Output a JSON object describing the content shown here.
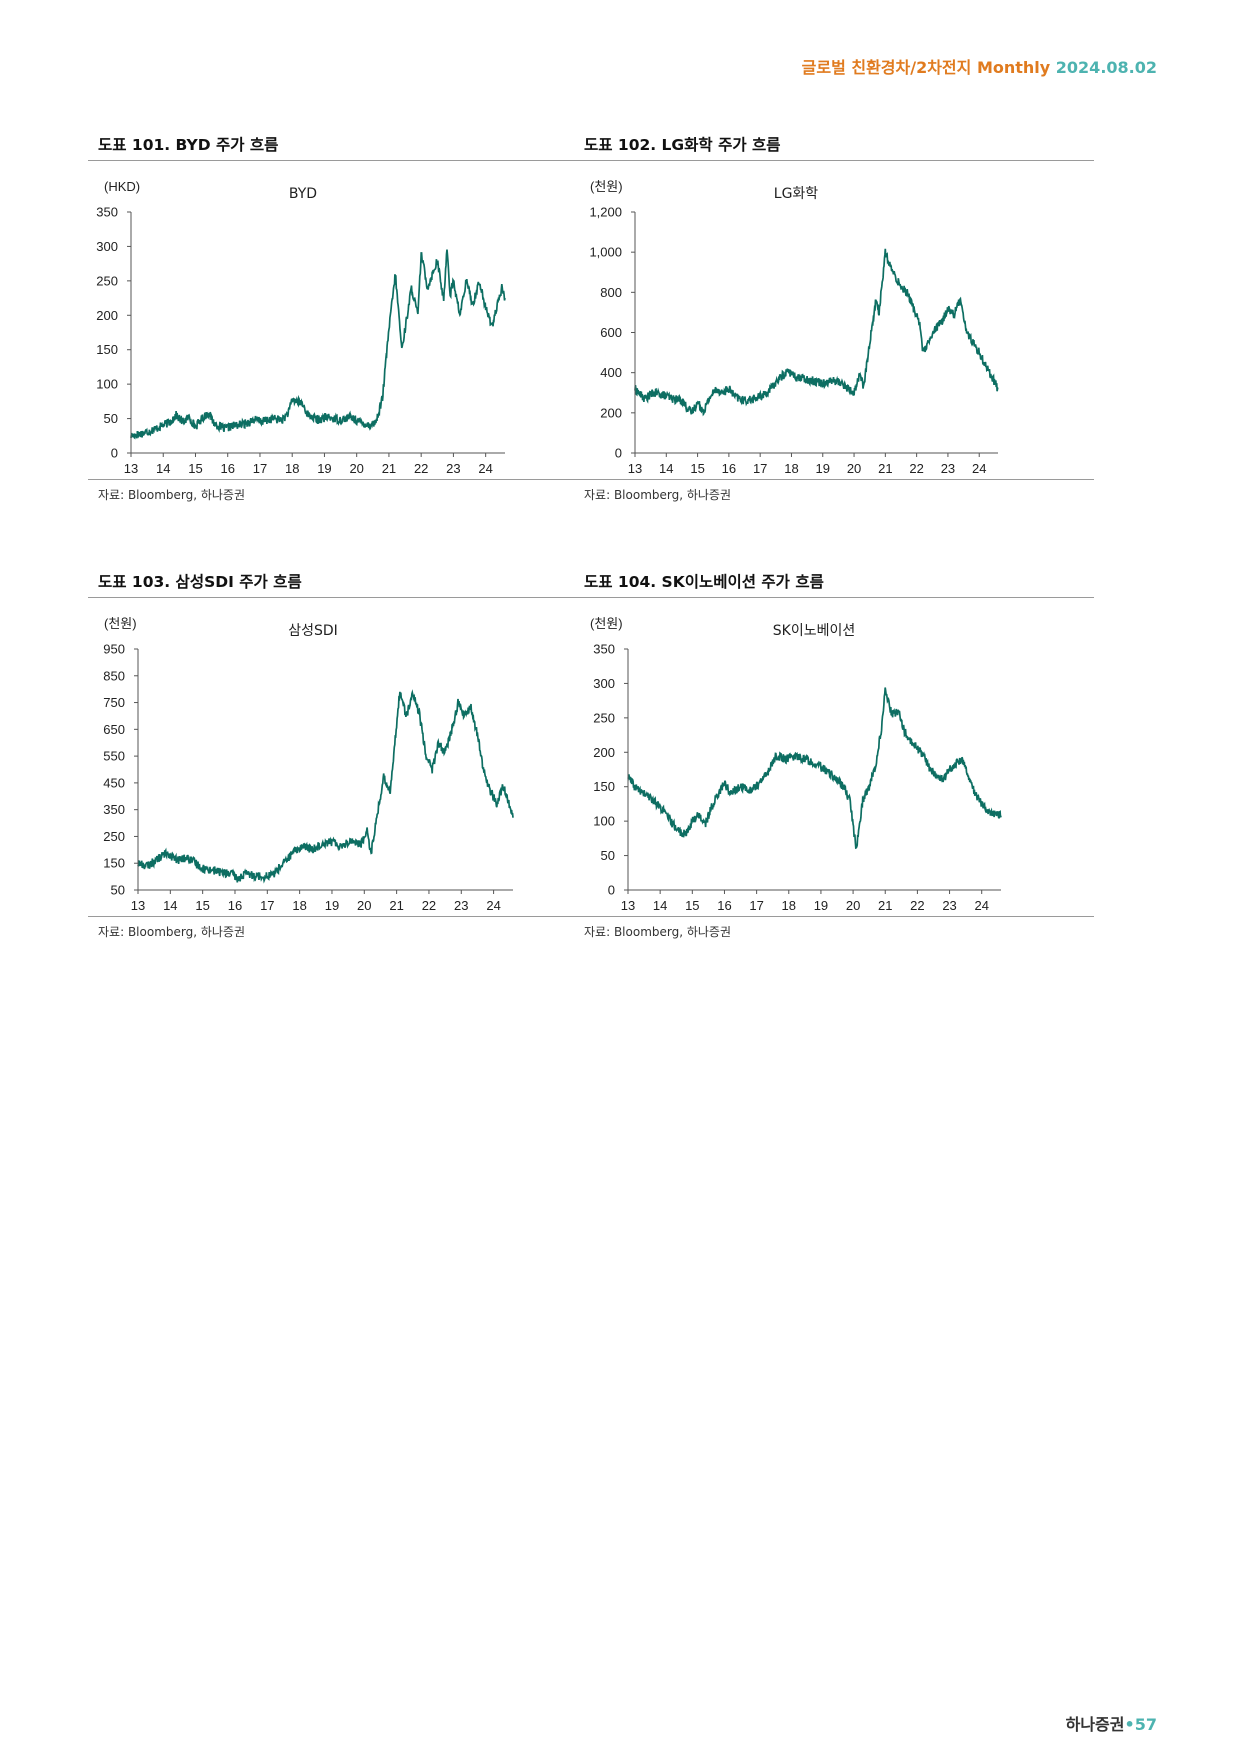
{
  "header": {
    "title": "글로벌 친환경차/2차전지 Monthly",
    "date": "2024.08.02"
  },
  "footer": {
    "brand": "하나증권",
    "dot": "•",
    "page": "57"
  },
  "colors": {
    "line": "#0d6e62",
    "accent_orange": "#e07b1f",
    "accent_teal": "#4db3b0"
  },
  "chart_data": [
    {
      "id": "byd",
      "type": "line",
      "title": "도표 101. BYD 주가 흐름",
      "series_name": "BYD",
      "unit": "(HKD)",
      "source": "자료: Bloomberg, 하나증권",
      "x_categories": [
        "13",
        "14",
        "15",
        "16",
        "17",
        "18",
        "19",
        "20",
        "21",
        "22",
        "23",
        "24"
      ],
      "x_range": [
        13,
        24.6
      ],
      "y_ticks": [
        "0",
        "50",
        "100",
        "150",
        "200",
        "250",
        "300",
        "350"
      ],
      "ylim": [
        0,
        350
      ],
      "anchors": [
        [
          13,
          25
        ],
        [
          13.3,
          28
        ],
        [
          13.6,
          32
        ],
        [
          13.9,
          38
        ],
        [
          14.2,
          45
        ],
        [
          14.4,
          55
        ],
        [
          14.6,
          45
        ],
        [
          14.8,
          52
        ],
        [
          15.0,
          38
        ],
        [
          15.2,
          50
        ],
        [
          15.4,
          58
        ],
        [
          15.6,
          42
        ],
        [
          15.9,
          35
        ],
        [
          16.2,
          40
        ],
        [
          16.5,
          42
        ],
        [
          16.8,
          48
        ],
        [
          17.1,
          46
        ],
        [
          17.4,
          50
        ],
        [
          17.7,
          48
        ],
        [
          17.9,
          60
        ],
        [
          18.0,
          78
        ],
        [
          18.3,
          72
        ],
        [
          18.5,
          55
        ],
        [
          18.8,
          48
        ],
        [
          19.1,
          52
        ],
        [
          19.5,
          48
        ],
        [
          19.8,
          52
        ],
        [
          20.1,
          45
        ],
        [
          20.4,
          40
        ],
        [
          20.6,
          45
        ],
        [
          20.8,
          80
        ],
        [
          21.0,
          180
        ],
        [
          21.2,
          260
        ],
        [
          21.4,
          150
        ],
        [
          21.7,
          240
        ],
        [
          21.9,
          200
        ],
        [
          22.0,
          290
        ],
        [
          22.2,
          240
        ],
        [
          22.5,
          280
        ],
        [
          22.7,
          220
        ],
        [
          22.8,
          300
        ],
        [
          22.9,
          230
        ],
        [
          23.0,
          250
        ],
        [
          23.2,
          200
        ],
        [
          23.4,
          250
        ],
        [
          23.6,
          215
        ],
        [
          23.8,
          250
        ],
        [
          24.0,
          210
        ],
        [
          24.2,
          185
        ],
        [
          24.4,
          220
        ],
        [
          24.5,
          240
        ],
        [
          24.6,
          225
        ]
      ]
    },
    {
      "id": "lgchem",
      "type": "line",
      "title": "도표 102. LG화학 주가 흐름",
      "series_name": "LG화학",
      "unit": "(천원)",
      "source": "자료: Bloomberg, 하나증권",
      "x_categories": [
        "13",
        "14",
        "15",
        "16",
        "17",
        "18",
        "19",
        "20",
        "21",
        "22",
        "23",
        "24"
      ],
      "x_range": [
        13,
        24.6
      ],
      "y_ticks": [
        "0",
        "200",
        "400",
        "600",
        "800",
        "1,000",
        "1,200"
      ],
      "ylim": [
        0,
        1200
      ],
      "anchors": [
        [
          13,
          320
        ],
        [
          13.3,
          270
        ],
        [
          13.6,
          300
        ],
        [
          13.9,
          290
        ],
        [
          14.2,
          270
        ],
        [
          14.5,
          260
        ],
        [
          14.8,
          200
        ],
        [
          15.0,
          250
        ],
        [
          15.2,
          210
        ],
        [
          15.4,
          280
        ],
        [
          15.6,
          320
        ],
        [
          15.8,
          300
        ],
        [
          16.0,
          320
        ],
        [
          16.2,
          280
        ],
        [
          16.5,
          260
        ],
        [
          16.8,
          270
        ],
        [
          17.0,
          280
        ],
        [
          17.3,
          310
        ],
        [
          17.6,
          370
        ],
        [
          17.9,
          410
        ],
        [
          18.1,
          380
        ],
        [
          18.4,
          370
        ],
        [
          18.7,
          360
        ],
        [
          19.0,
          350
        ],
        [
          19.3,
          360
        ],
        [
          19.6,
          350
        ],
        [
          19.8,
          320
        ],
        [
          20.0,
          300
        ],
        [
          20.2,
          400
        ],
        [
          20.3,
          320
        ],
        [
          20.5,
          550
        ],
        [
          20.7,
          760
        ],
        [
          20.8,
          700
        ],
        [
          21.0,
          1000
        ],
        [
          21.1,
          950
        ],
        [
          21.3,
          880
        ],
        [
          21.5,
          830
        ],
        [
          21.7,
          800
        ],
        [
          21.9,
          720
        ],
        [
          22.1,
          650
        ],
        [
          22.2,
          500
        ],
        [
          22.4,
          550
        ],
        [
          22.6,
          620
        ],
        [
          22.8,
          650
        ],
        [
          23.0,
          720
        ],
        [
          23.2,
          690
        ],
        [
          23.4,
          770
        ],
        [
          23.6,
          600
        ],
        [
          23.8,
          550
        ],
        [
          24.0,
          500
        ],
        [
          24.2,
          440
        ],
        [
          24.4,
          380
        ],
        [
          24.6,
          320
        ]
      ]
    },
    {
      "id": "samsungsdi",
      "type": "line",
      "title": "도표 103. 삼성SDI 주가 흐름",
      "series_name": "삼성SDI",
      "unit": "(천원)",
      "source": "자료: Bloomberg, 하나증권",
      "x_categories": [
        "13",
        "14",
        "15",
        "16",
        "17",
        "18",
        "19",
        "20",
        "21",
        "22",
        "23",
        "24"
      ],
      "x_range": [
        13,
        24.6
      ],
      "y_ticks": [
        "50",
        "150",
        "250",
        "350",
        "450",
        "550",
        "650",
        "750",
        "850",
        "950"
      ],
      "ylim": [
        50,
        950
      ],
      "anchors": [
        [
          13,
          150
        ],
        [
          13.3,
          140
        ],
        [
          13.6,
          165
        ],
        [
          13.9,
          190
        ],
        [
          14.2,
          160
        ],
        [
          14.5,
          170
        ],
        [
          14.8,
          150
        ],
        [
          15.0,
          130
        ],
        [
          15.3,
          125
        ],
        [
          15.6,
          115
        ],
        [
          15.9,
          110
        ],
        [
          16.1,
          90
        ],
        [
          16.3,
          110
        ],
        [
          16.6,
          105
        ],
        [
          16.9,
          100
        ],
        [
          17.2,
          110
        ],
        [
          17.5,
          150
        ],
        [
          17.8,
          190
        ],
        [
          18.1,
          215
        ],
        [
          18.4,
          200
        ],
        [
          18.7,
          225
        ],
        [
          19.0,
          230
        ],
        [
          19.3,
          215
        ],
        [
          19.6,
          235
        ],
        [
          19.9,
          220
        ],
        [
          20.1,
          280
        ],
        [
          20.2,
          180
        ],
        [
          20.4,
          330
        ],
        [
          20.6,
          470
        ],
        [
          20.8,
          420
        ],
        [
          21.0,
          660
        ],
        [
          21.1,
          800
        ],
        [
          21.3,
          700
        ],
        [
          21.5,
          780
        ],
        [
          21.7,
          710
        ],
        [
          21.9,
          560
        ],
        [
          22.1,
          500
        ],
        [
          22.3,
          600
        ],
        [
          22.5,
          560
        ],
        [
          22.8,
          690
        ],
        [
          22.9,
          750
        ],
        [
          23.1,
          700
        ],
        [
          23.3,
          730
        ],
        [
          23.5,
          630
        ],
        [
          23.7,
          490
        ],
        [
          23.9,
          420
        ],
        [
          24.1,
          370
        ],
        [
          24.3,
          440
        ],
        [
          24.5,
          360
        ],
        [
          24.6,
          320
        ]
      ]
    },
    {
      "id": "skinnovation",
      "type": "line",
      "title": "도표 104. SK이노베이션 주가 흐름",
      "series_name": "SK이노베이션",
      "unit": "(천원)",
      "source": "자료: Bloomberg, 하나증권",
      "x_categories": [
        "13",
        "14",
        "15",
        "16",
        "17",
        "18",
        "19",
        "20",
        "21",
        "22",
        "23",
        "24"
      ],
      "x_range": [
        13,
        24.6
      ],
      "y_ticks": [
        "0",
        "50",
        "100",
        "150",
        "200",
        "250",
        "300",
        "350"
      ],
      "ylim": [
        0,
        350
      ],
      "anchors": [
        [
          13,
          165
        ],
        [
          13.2,
          150
        ],
        [
          13.5,
          140
        ],
        [
          13.8,
          130
        ],
        [
          14.1,
          115
        ],
        [
          14.4,
          95
        ],
        [
          14.6,
          85
        ],
        [
          14.8,
          80
        ],
        [
          15.0,
          100
        ],
        [
          15.2,
          110
        ],
        [
          15.4,
          95
        ],
        [
          15.6,
          120
        ],
        [
          15.8,
          140
        ],
        [
          16.0,
          155
        ],
        [
          16.2,
          140
        ],
        [
          16.5,
          150
        ],
        [
          16.8,
          145
        ],
        [
          17.1,
          155
        ],
        [
          17.4,
          175
        ],
        [
          17.6,
          195
        ],
        [
          17.9,
          190
        ],
        [
          18.2,
          195
        ],
        [
          18.5,
          190
        ],
        [
          18.8,
          185
        ],
        [
          19.1,
          175
        ],
        [
          19.4,
          165
        ],
        [
          19.7,
          150
        ],
        [
          19.9,
          130
        ],
        [
          20.1,
          60
        ],
        [
          20.3,
          130
        ],
        [
          20.5,
          150
        ],
        [
          20.7,
          180
        ],
        [
          20.9,
          240
        ],
        [
          21.0,
          290
        ],
        [
          21.2,
          255
        ],
        [
          21.4,
          260
        ],
        [
          21.6,
          230
        ],
        [
          21.8,
          215
        ],
        [
          22.0,
          205
        ],
        [
          22.2,
          195
        ],
        [
          22.4,
          175
        ],
        [
          22.6,
          165
        ],
        [
          22.8,
          160
        ],
        [
          23.0,
          175
        ],
        [
          23.2,
          185
        ],
        [
          23.4,
          190
        ],
        [
          23.6,
          165
        ],
        [
          23.8,
          140
        ],
        [
          24.0,
          125
        ],
        [
          24.2,
          115
        ],
        [
          24.4,
          110
        ],
        [
          24.6,
          108
        ]
      ]
    }
  ]
}
